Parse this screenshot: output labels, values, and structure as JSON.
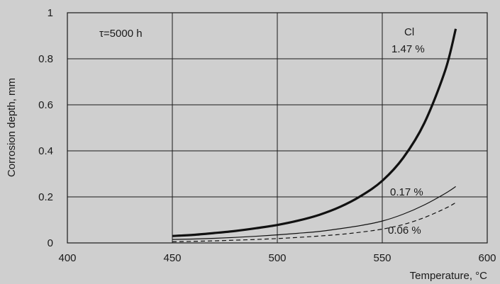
{
  "chart_data": {
    "type": "line",
    "title": "",
    "xlabel": "Temperature, °C",
    "ylabel": "Corrosion depth, mm",
    "xlim": [
      400,
      600
    ],
    "ylim": [
      0,
      1
    ],
    "xticks": [
      "400",
      "450",
      "500",
      "550",
      "600"
    ],
    "yticks": [
      "0",
      "0.2",
      "0.4",
      "0.6",
      "0.8",
      "1"
    ],
    "grid": true,
    "annotations": {
      "condition": "τ=5000 h",
      "series_group": "Cl"
    },
    "series": [
      {
        "name": "1.47 %",
        "style": "thick-solid",
        "x": [
          450,
          460,
          470,
          480,
          490,
          500,
          510,
          520,
          530,
          540,
          550,
          560,
          570,
          580,
          585
        ],
        "y": [
          0.03,
          0.035,
          0.043,
          0.052,
          0.064,
          0.078,
          0.097,
          0.122,
          0.157,
          0.205,
          0.27,
          0.37,
          0.52,
          0.75,
          0.93
        ]
      },
      {
        "name": "0.17 %",
        "style": "thin-solid",
        "x": [
          450,
          460,
          470,
          480,
          490,
          500,
          510,
          520,
          530,
          540,
          550,
          560,
          570,
          580,
          585
        ],
        "y": [
          0.015,
          0.017,
          0.02,
          0.024,
          0.029,
          0.035,
          0.042,
          0.05,
          0.062,
          0.076,
          0.095,
          0.125,
          0.165,
          0.215,
          0.245
        ]
      },
      {
        "name": "0.06 %",
        "style": "dashed",
        "x": [
          450,
          460,
          470,
          480,
          490,
          500,
          510,
          520,
          530,
          540,
          550,
          560,
          570,
          580,
          585
        ],
        "y": [
          0.005,
          0.007,
          0.009,
          0.012,
          0.015,
          0.019,
          0.024,
          0.03,
          0.037,
          0.047,
          0.06,
          0.08,
          0.11,
          0.15,
          0.175
        ]
      }
    ]
  }
}
